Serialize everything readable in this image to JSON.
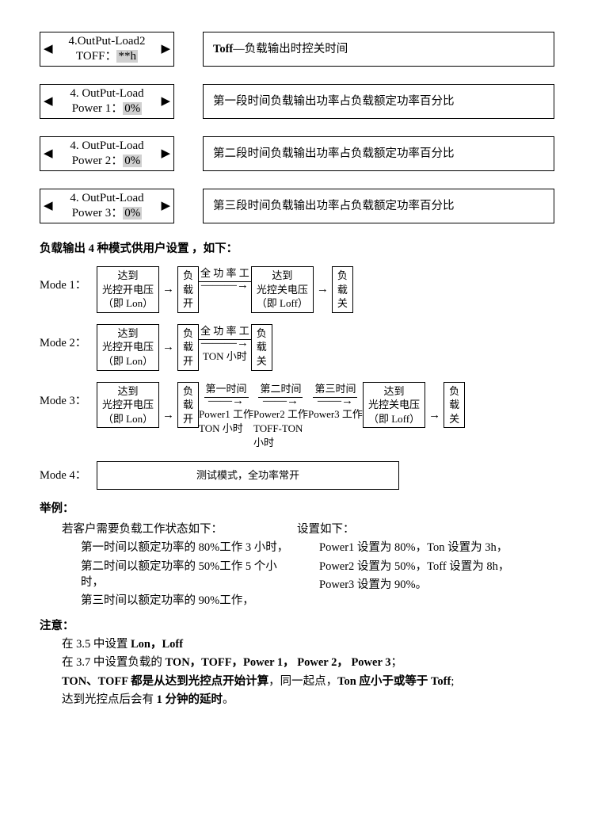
{
  "params": [
    {
      "name": "toff",
      "line1": "4.OutPut-Load2",
      "line2_pre": "TOFF：",
      "line2_hl": "**h",
      "desc_pre_b": "Toff",
      "desc": "—负载输出时控关时间"
    },
    {
      "name": "power1",
      "line1": "4. OutPut-Load",
      "line2_pre": "Power 1：",
      "line2_hl": "0%",
      "desc": "第一段时间负载输出功率占负载额定功率百分比"
    },
    {
      "name": "power2",
      "line1": "4. OutPut-Load",
      "line2_pre": "Power 2：",
      "line2_hl": "0%",
      "desc": "第二段时间负载输出功率占负载额定功率百分比"
    },
    {
      "name": "power3",
      "line1": "4. OutPut-Load",
      "line2_pre": "Power 3：",
      "line2_hl": "0%",
      "desc": "第三段时间负载输出功率占负载额定功率百分比"
    }
  ],
  "header_modes": "负载输出 4 种模式供用户设置 ，如下：",
  "mode_labels": [
    "Mode 1：",
    "Mode 2：",
    "Mode 3：",
    "Mode 4："
  ],
  "boxes": {
    "lon": "达到\n光控开电压\n（即 Lon）",
    "on": "负\n载\n开",
    "loff": "达到\n光控关电压\n（即 Loff）",
    "off": "负\n载\n关",
    "m4": "测试模式，全功率常开"
  },
  "edges": {
    "full": "全 功 率 工",
    "full_ton": "TON 小时",
    "t1": "第一时间",
    "t1s": "Power1 工作\nTON 小时",
    "t2": "第二时间",
    "t2s": "Power2 工作\nTOFF-TON\n小时",
    "t3": "第三时间",
    "t3s": "Power3 工作"
  },
  "example": {
    "title": "举例：",
    "need": "若客户需要负载工作状态如下：",
    "need_lines": [
      "第一时间以额定功率的 80%工作 3 小时，",
      "第二时间以额定功率的 50%工作 5 个小时，",
      "第三时间以额定功率的 90%工作，"
    ],
    "set": "设置如下：",
    "set_lines": [
      "Power1 设置为 80%，Ton 设置为 3h，",
      "Power2 设置为 50%，Toff 设置为 8h，",
      "Power3 设置为 90%。"
    ]
  },
  "note": {
    "title": "注意：",
    "l1": "在 3.5 中设置 ",
    "l1b": "Lon，Loff",
    "l2a": "在 3.7 中设置负载的 ",
    "l2b": "TON，TOFF，Power 1，  Power 2，  Power 3",
    "l2c": "；",
    "l3a": "TON、TOFF 都是从达到光控点开始计算",
    "l3b": "，同一起点，",
    "l3c": "Ton 应小于或等于 Toff",
    "l3d": ";",
    "l4a": "达到光控点后会有 ",
    "l4b": "1 分钟的延时",
    "l4c": "。"
  }
}
